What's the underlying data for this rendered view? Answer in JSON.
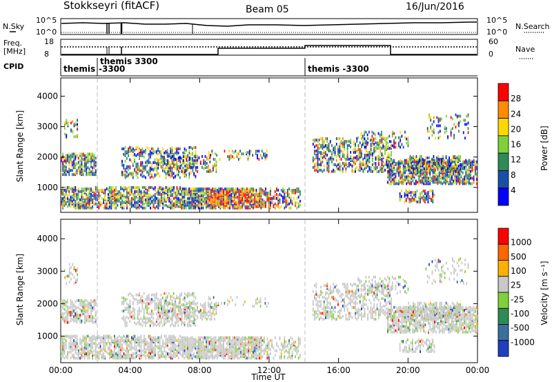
{
  "header": {
    "station": "Stokkseyri (fitACF)",
    "beam": "Beam 05",
    "date": "16/Jun/2016"
  },
  "strip_labels": {
    "nsky": "N.Sky",
    "nsearch": "N.Search",
    "freq_line1": "Freq.",
    "freq_line2": "[MHz]",
    "nave": "Nave",
    "cpid": "CPID",
    "nsky_ticks": [
      "10^5",
      "10^0"
    ],
    "nsearch_ticks": [
      "10^5",
      "10^0"
    ],
    "freq_ticks": [
      "18",
      "8"
    ],
    "nave_ticks": [
      "60",
      "0"
    ]
  },
  "cpid_labels": [
    "themis",
    "-3300",
    "themis 3300",
    "themis -3300"
  ],
  "colors": {
    "noise_line": "#000000",
    "missing_gap": "#ffffff",
    "range_gate_grid": "#c8c8c8"
  },
  "chart_data": [
    {
      "type": "heatmap",
      "title": "",
      "xlabel": "",
      "ylabel": "Slant Range [km]",
      "x_ticks": [
        "00:00",
        "04:00",
        "08:00",
        "12:00",
        "16:00",
        "20:00",
        "00:00"
      ],
      "y_ticks": [
        "1000",
        "2000",
        "3000",
        "4000"
      ],
      "xlim": [
        0,
        24
      ],
      "ylim": [
        180,
        4600
      ],
      "colorbar": {
        "label": "Power [dB]",
        "ticks": [
          "4",
          "8",
          "12",
          "16",
          "20",
          "24",
          "28"
        ],
        "colors": [
          "#0000ff",
          "#1a4fa8",
          "#2e8b57",
          "#7fd13b",
          "#ffd700",
          "#ff8c00",
          "#ff0000"
        ]
      }
    },
    {
      "type": "heatmap",
      "title": "",
      "xlabel": "Time UT",
      "ylabel": "Slant Range [km]",
      "x_ticks": [
        "00:00",
        "04:00",
        "08:00",
        "12:00",
        "16:00",
        "20:00",
        "00:00"
      ],
      "y_ticks": [
        "1000",
        "2000",
        "3000",
        "4000"
      ],
      "xlim": [
        0,
        24
      ],
      "ylim": [
        180,
        4600
      ],
      "colorbar": {
        "label": "Velocity [m s⁻¹]",
        "ticks": [
          "1000",
          "500",
          "100",
          "25",
          "-25",
          "-100",
          "-500",
          "-1000"
        ],
        "colors": [
          "#1f3fbf",
          "#3c6e9e",
          "#2e8b57",
          "#7fd13b",
          "#c8c8c8",
          "#ffb000",
          "#ff6600",
          "#ff0000"
        ]
      }
    }
  ]
}
